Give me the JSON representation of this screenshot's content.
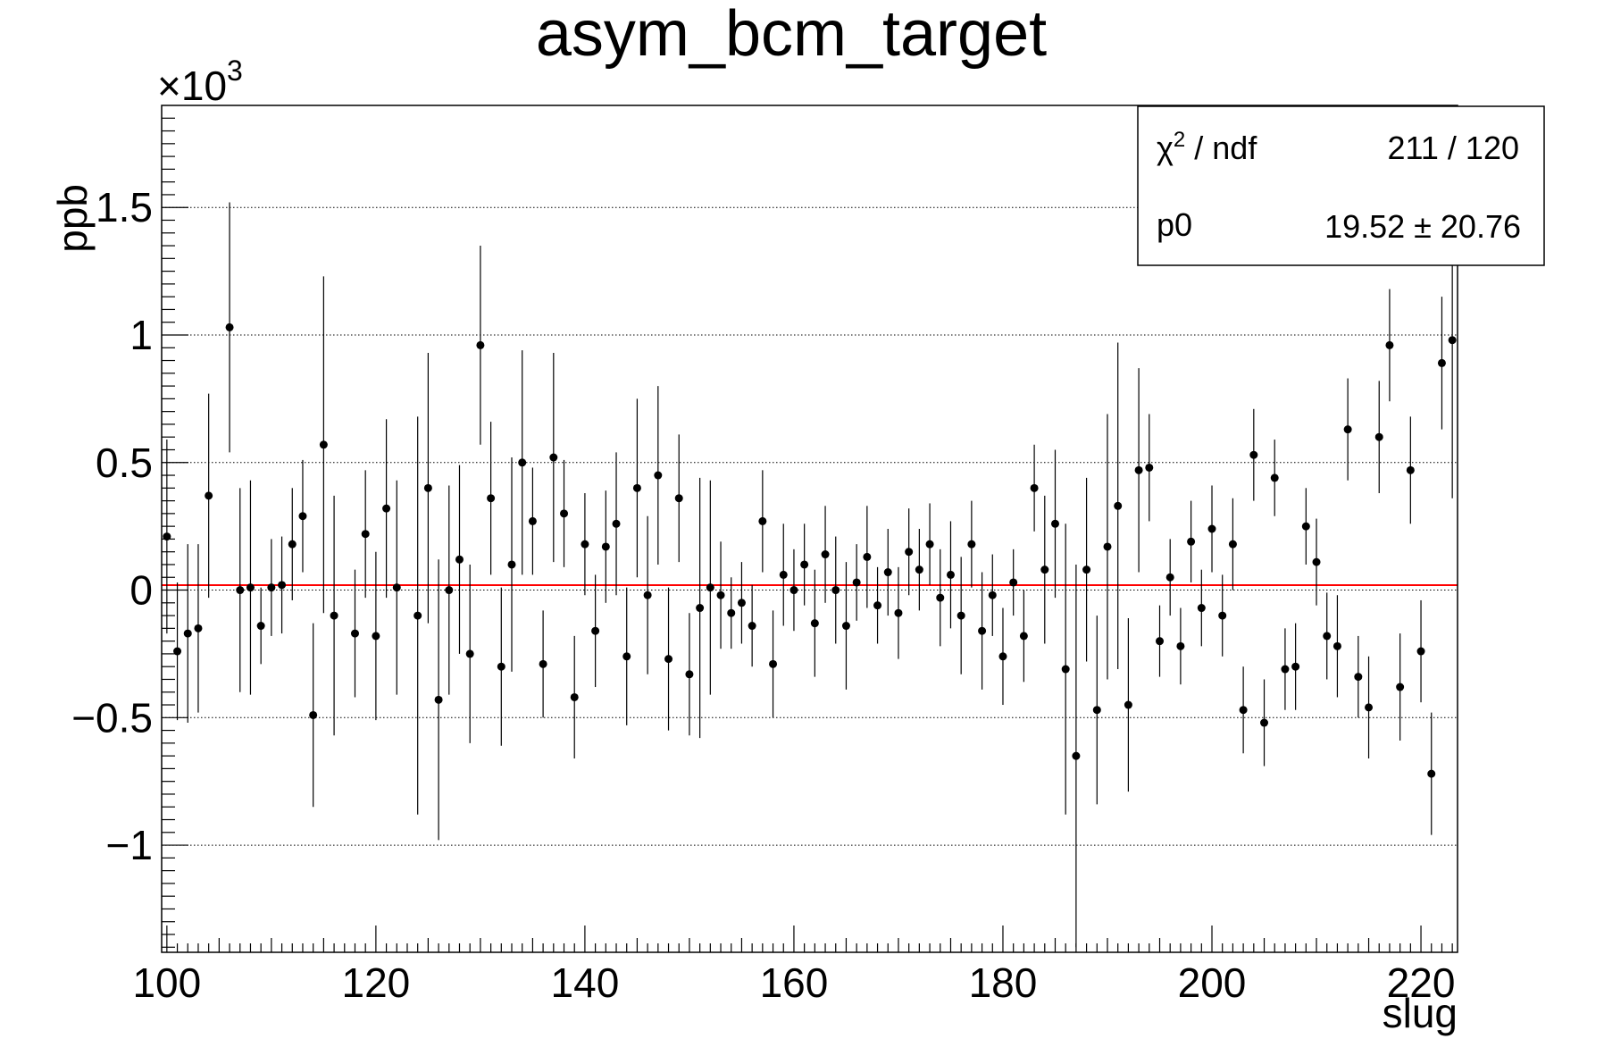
{
  "chart_data": {
    "type": "scatter",
    "title": "asym_bcm_target",
    "xlabel": "slug",
    "ylabel": "ppb",
    "y_multiplier": "×10",
    "y_multiplier_exp": "3",
    "xlim": [
      99.5,
      223.5
    ],
    "ylim": [
      -1.42,
      1.9
    ],
    "x_ticks": [
      100,
      120,
      140,
      160,
      180,
      200,
      220
    ],
    "x_tick_labels": [
      "100",
      "120",
      "140",
      "160",
      "180",
      "200",
      "220"
    ],
    "y_ticks": [
      -1,
      -0.5,
      0,
      0.5,
      1,
      1.5
    ],
    "y_tick_labels": [
      "−1",
      "−0.5",
      "0",
      "0.5",
      "1",
      "1.5"
    ],
    "grid": "horizontal dotted",
    "fit_line": {
      "value": 0.01952,
      "color": "#ff0000"
    },
    "stats": {
      "chi2_label": "χ",
      "chi2_exp": "2",
      "chi2_suffix": " / ndf",
      "chi2_value": "211 / 120",
      "p0_label": "p0",
      "p0_value": "19.52 ± 20.76"
    },
    "series": [
      {
        "x": [
          100,
          101,
          102,
          103,
          104,
          106,
          107,
          108,
          109,
          110,
          111,
          112,
          113,
          114,
          115,
          116,
          118,
          119,
          120,
          121,
          122,
          124,
          125,
          126,
          127,
          128,
          129,
          130,
          131,
          132,
          133,
          134,
          135,
          136,
          137,
          138,
          139,
          140,
          141,
          142,
          143,
          144,
          145,
          146,
          147,
          148,
          149,
          150,
          151,
          152,
          153,
          154,
          155,
          156,
          157,
          158,
          159,
          160,
          161,
          162,
          163,
          164,
          165,
          166,
          167,
          168,
          169,
          170,
          171,
          172,
          173,
          174,
          175,
          176,
          177,
          178,
          179,
          180,
          181,
          182,
          183,
          184,
          185,
          186,
          187,
          188,
          189,
          190,
          191,
          192,
          193,
          194,
          195,
          196,
          197,
          198,
          199,
          200,
          201,
          202,
          203,
          204,
          205,
          206,
          207,
          208,
          209,
          210,
          211,
          212,
          213,
          214,
          215,
          216,
          217,
          218,
          219,
          220,
          221,
          222,
          223
        ],
        "y": [
          0.21,
          -0.24,
          -0.17,
          -0.15,
          0.37,
          1.03,
          0.0,
          0.01,
          -0.14,
          0.01,
          0.02,
          0.18,
          0.29,
          -0.49,
          0.57,
          -0.1,
          -0.17,
          0.22,
          -0.18,
          0.32,
          0.01,
          -0.1,
          0.4,
          -0.43,
          0.0,
          0.12,
          -0.25,
          0.96,
          0.36,
          -0.3,
          0.1,
          0.5,
          0.27,
          -0.29,
          0.52,
          0.3,
          -0.42,
          0.18,
          -0.16,
          0.17,
          0.26,
          -0.26,
          0.4,
          -0.02,
          0.45,
          -0.27,
          0.36,
          -0.33,
          -0.07,
          0.01,
          -0.02,
          -0.09,
          -0.05,
          -0.14,
          0.27,
          -0.29,
          0.06,
          0.0,
          0.1,
          -0.13,
          0.14,
          0.0,
          -0.14,
          0.03,
          0.13,
          -0.06,
          0.07,
          -0.09,
          0.15,
          0.08,
          0.18,
          -0.03,
          0.06,
          -0.1,
          0.18,
          -0.16,
          -0.02,
          -0.26,
          0.03,
          -0.18,
          0.4,
          0.08,
          0.26,
          -0.31,
          -0.65,
          0.08,
          -0.47,
          0.17,
          0.33,
          -0.45,
          0.47,
          0.48,
          -0.2,
          0.05,
          -0.22,
          0.19,
          -0.07,
          0.24,
          -0.1,
          0.18,
          -0.47,
          0.53,
          -0.52,
          0.44,
          -0.31,
          -0.3,
          0.25,
          0.11,
          -0.18,
          -0.22,
          0.63,
          -0.34,
          -0.46,
          0.6,
          0.96,
          -0.38,
          0.47,
          -0.24,
          -0.72,
          0.89,
          0.98
        ],
        "yerr": [
          0.38,
          0.27,
          0.35,
          0.33,
          0.4,
          0.49,
          0.4,
          0.42,
          0.15,
          0.19,
          0.19,
          0.22,
          0.22,
          0.36,
          0.66,
          0.47,
          0.25,
          0.25,
          0.33,
          0.35,
          0.42,
          0.78,
          0.53,
          0.55,
          0.41,
          0.37,
          0.35,
          0.39,
          0.3,
          0.31,
          0.42,
          0.44,
          0.21,
          0.21,
          0.41,
          0.21,
          0.24,
          0.2,
          0.22,
          0.22,
          0.28,
          0.27,
          0.35,
          0.31,
          0.35,
          0.28,
          0.25,
          0.24,
          0.51,
          0.42,
          0.21,
          0.14,
          0.16,
          0.16,
          0.2,
          0.21,
          0.2,
          0.16,
          0.16,
          0.21,
          0.19,
          0.21,
          0.25,
          0.15,
          0.2,
          0.15,
          0.17,
          0.18,
          0.17,
          0.16,
          0.16,
          0.19,
          0.21,
          0.23,
          0.17,
          0.23,
          0.16,
          0.19,
          0.13,
          0.18,
          0.17,
          0.29,
          0.29,
          0.57,
          0.75,
          0.36,
          0.37,
          0.52,
          0.64,
          0.34,
          0.4,
          0.21,
          0.14,
          0.15,
          0.15,
          0.16,
          0.15,
          0.17,
          0.16,
          0.18,
          0.17,
          0.18,
          0.17,
          0.15,
          0.16,
          0.17,
          0.15,
          0.17,
          0.17,
          0.2,
          0.2,
          0.16,
          0.2,
          0.22,
          0.22,
          0.21,
          0.21,
          0.2,
          0.24,
          0.26,
          0.62
        ]
      }
    ]
  }
}
